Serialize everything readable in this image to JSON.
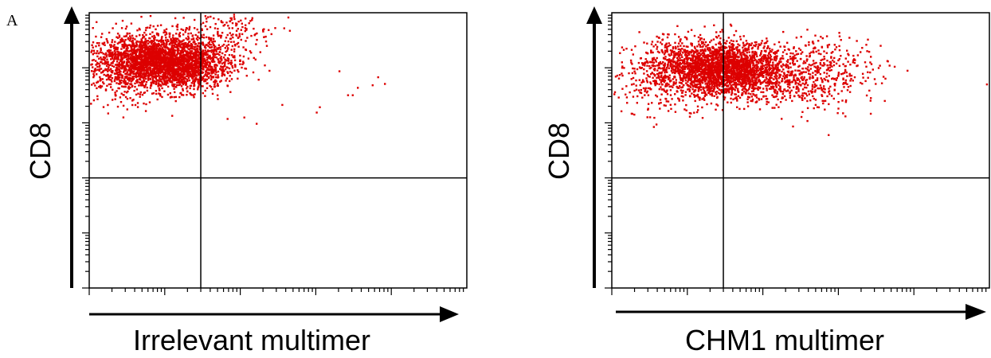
{
  "figure": {
    "panel_label": "A",
    "colors": {
      "dots": "#dd0000",
      "axes": "#000000",
      "background": "#ffffff"
    }
  },
  "chart_data": [
    {
      "type": "scatter",
      "title": "",
      "xlabel": "Irrelevant multimer",
      "ylabel": "CD8",
      "xscale": "log",
      "yscale": "log",
      "xlim": [
        1,
        100000
      ],
      "ylim": [
        1,
        100000
      ],
      "quadrant_gate": {
        "x": 30,
        "y": 100
      },
      "grid": false,
      "legend": "none",
      "series": [
        {
          "values": [
            {
              "x": 6,
              "y": 15000,
              "density": "main"
            },
            {
              "x": 18,
              "y": 12000,
              "density": "main"
            },
            {
              "x": 3,
              "y": 8000,
              "density": "sparse"
            },
            {
              "x": 1.5,
              "y": 12000,
              "density": "sparse"
            },
            {
              "x": 55,
              "y": 40000,
              "density": "sparse"
            }
          ],
          "outliers": [
            {
              "x": 2000,
              "y": 9000
            },
            {
              "x": 3500,
              "y": 4500
            },
            {
              "x": 1100,
              "y": 2000
            },
            {
              "x": 1000,
              "y": 1600
            },
            {
              "x": 2600,
              "y": 3300
            },
            {
              "x": 3000,
              "y": 3300
            },
            {
              "x": 5500,
              "y": 5000
            },
            {
              "x": 6500,
              "y": 7000
            },
            {
              "x": 8000,
              "y": 5300
            },
            {
              "x": 350,
              "y": 2200
            },
            {
              "x": 110,
              "y": 1300
            },
            {
              "x": 160,
              "y": 1000
            }
          ]
        }
      ]
    },
    {
      "type": "scatter",
      "title": "",
      "xlabel": "CHM1 multimer",
      "ylabel": "CD8",
      "xscale": "log",
      "yscale": "log",
      "xlim": [
        1,
        100000
      ],
      "ylim": [
        1,
        100000
      ],
      "quadrant_gate": {
        "x": 30,
        "y": 100
      },
      "grid": false,
      "legend": "none",
      "series": [
        {
          "values": [
            {
              "x": 20,
              "y": 12000,
              "density": "main"
            },
            {
              "x": 40,
              "y": 8000,
              "density": "main"
            },
            {
              "x": 4,
              "y": 6000,
              "density": "sparse"
            },
            {
              "x": 300,
              "y": 7000,
              "density": "sparse"
            },
            {
              "x": 900,
              "y": 9000,
              "density": "sparse"
            }
          ],
          "outliers": [
            {
              "x": 8000,
              "y": 9200
            },
            {
              "x": 90000,
              "y": 5200
            },
            {
              "x": 1600,
              "y": 7000
            },
            {
              "x": 4000,
              "y": 2600
            },
            {
              "x": 1200,
              "y": 9500
            },
            {
              "x": 1.2,
              "y": 3000
            },
            {
              "x": 2500,
              "y": 4000
            }
          ]
        }
      ]
    }
  ]
}
